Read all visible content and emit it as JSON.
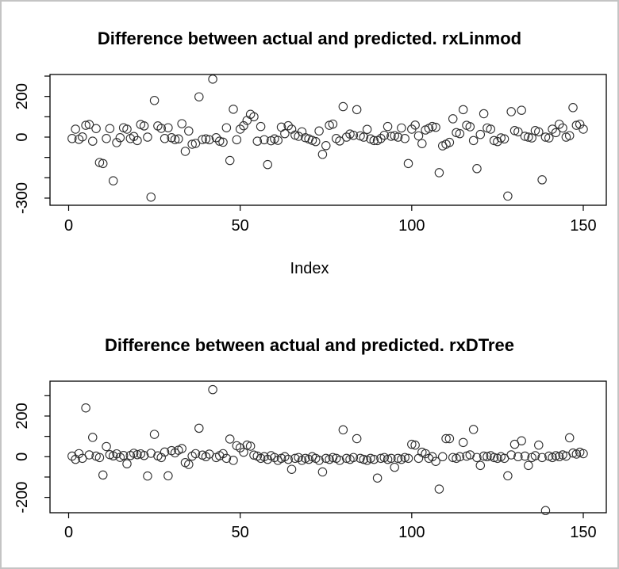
{
  "window": {
    "background": "#ffffff",
    "border_color": "#c4c4c4"
  },
  "chart_data": [
    {
      "type": "scatter",
      "title": "Difference between actual and predicted. rxLinmod",
      "xlabel": "Index",
      "ylabel": "",
      "marker": "open-circle",
      "marker_color": "#2e2e2e",
      "grid": false,
      "xlim": [
        -5,
        156
      ],
      "ylim": [
        -335,
        308
      ],
      "x_ticks": [
        0,
        50,
        100,
        150
      ],
      "y_ticks": [
        300,
        200,
        100,
        0,
        -100,
        -200,
        -300
      ],
      "y_labeled": [
        {
          "value": 200,
          "label": "200"
        },
        {
          "value": 0,
          "label": "0"
        },
        {
          "value": -300,
          "label": "-300"
        }
      ],
      "series": [
        {
          "name": "actual-minus-predicted-rxLinmod",
          "x_start": 1,
          "values": [
            -7,
            39,
            -11,
            1,
            58,
            62,
            -20,
            42,
            -125,
            -130,
            -7,
            42,
            -215,
            -27,
            -3,
            46,
            39,
            -7,
            3,
            -17,
            62,
            55,
            0,
            -295,
            180,
            55,
            43,
            -7,
            46,
            -3,
            -12,
            -9,
            66,
            -70,
            30,
            -35,
            -31,
            198,
            -12,
            -9,
            -13,
            285,
            -3,
            -20,
            -25,
            46,
            -115,
            137,
            -13,
            39,
            56,
            82,
            112,
            100,
            -20,
            52,
            -13,
            -135,
            -18,
            -9,
            -16,
            49,
            17,
            56,
            39,
            10,
            4,
            26,
            -3,
            -9,
            -16,
            -22,
            30,
            -85,
            -42,
            58,
            64,
            -7,
            -19,
            150,
            0,
            15,
            9,
            135,
            6,
            0,
            38,
            -9,
            -17,
            -17,
            -7,
            9,
            52,
            4,
            7,
            0,
            45,
            -7,
            -130,
            39,
            59,
            6,
            -32,
            35,
            43,
            52,
            48,
            -175,
            -43,
            -35,
            -26,
            90,
            22,
            17,
            135,
            58,
            51,
            -17,
            -155,
            13,
            115,
            45,
            39,
            -17,
            -22,
            -4,
            -9,
            -290,
            125,
            32,
            26,
            132,
            4,
            0,
            -4,
            32,
            26,
            -210,
            0,
            -4,
            39,
            22,
            63,
            45,
            0,
            7,
            145,
            58,
            63,
            39
          ]
        }
      ]
    },
    {
      "type": "scatter",
      "title": "Difference between actual and predicted. rxDTree",
      "xlabel": "",
      "ylabel": "",
      "marker": "open-circle",
      "marker_color": "#2e2e2e",
      "grid": false,
      "xlim": [
        -5,
        156
      ],
      "ylim": [
        -276,
        371
      ],
      "x_ticks": [
        0,
        50,
        100,
        150
      ],
      "y_ticks": [
        300,
        200,
        100,
        0,
        -100,
        -200
      ],
      "y_labeled": [
        {
          "value": 200,
          "label": "200"
        },
        {
          "value": 0,
          "label": "0"
        },
        {
          "value": -200,
          "label": "-200"
        }
      ],
      "series": [
        {
          "name": "actual-minus-predicted-rxDTree",
          "x_start": 1,
          "values": [
            3,
            -13,
            15,
            -8,
            240,
            9,
            95,
            3,
            -4,
            -90,
            50,
            10,
            4,
            14,
            -3,
            6,
            -35,
            6,
            17,
            10,
            14,
            6,
            -95,
            17,
            110,
            4,
            -4,
            23,
            -94,
            30,
            19,
            32,
            40,
            -29,
            -38,
            3,
            15,
            140,
            8,
            0,
            13,
            330,
            -4,
            5,
            15,
            -8,
            87,
            -18,
            54,
            44,
            22,
            57,
            52,
            8,
            3,
            -8,
            0,
            -13,
            5,
            -4,
            -18,
            -8,
            0,
            -13,
            -62,
            -8,
            -4,
            -18,
            -8,
            -13,
            0,
            -8,
            -18,
            -75,
            -8,
            -13,
            -4,
            -8,
            -18,
            132,
            -8,
            -13,
            -4,
            89,
            -8,
            -13,
            -18,
            -8,
            -13,
            -105,
            -8,
            -4,
            -13,
            -8,
            -52,
            -8,
            -13,
            -4,
            -8,
            61,
            57,
            -8,
            22,
            15,
            -8,
            0,
            -23,
            -159,
            0,
            89,
            89,
            -4,
            -8,
            0,
            70,
            3,
            9,
            134,
            -4,
            -43,
            3,
            0,
            5,
            -4,
            -8,
            0,
            -8,
            -94,
            9,
            61,
            0,
            78,
            3,
            -43,
            -4,
            5,
            57,
            -4,
            -265,
            3,
            -4,
            5,
            0,
            9,
            3,
            93,
            18,
            13,
            22,
            15
          ]
        }
      ]
    }
  ]
}
